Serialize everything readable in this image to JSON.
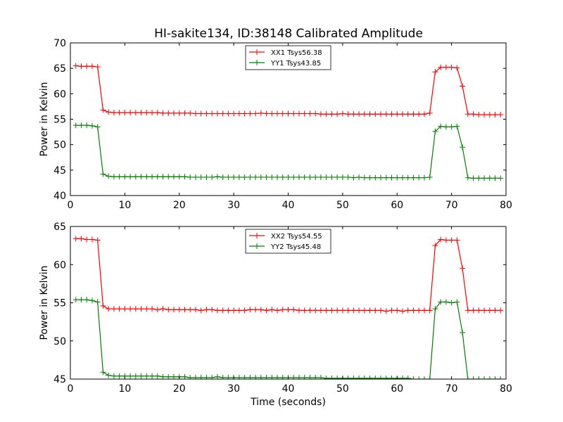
{
  "figure": {
    "title": "HI-sakite134, ID:38148 Calibrated Amplitude"
  },
  "chart_data": [
    {
      "type": "line",
      "title": "HI-sakite134, ID:38148 Calibrated Amplitude",
      "xlabel": "",
      "ylabel": "Power in Kelvin",
      "xlim": [
        0,
        80
      ],
      "ylim": [
        40,
        70
      ],
      "xticks": [
        "0",
        "10",
        "20",
        "30",
        "40",
        "50",
        "60",
        "70",
        "80"
      ],
      "yticks": [
        "40",
        "45",
        "50",
        "55",
        "60",
        "65",
        "70"
      ],
      "grid": false,
      "legend_position": "top-center",
      "x": [
        1,
        2,
        3,
        4,
        5,
        6,
        7,
        8,
        9,
        10,
        11,
        12,
        13,
        14,
        15,
        16,
        17,
        18,
        19,
        20,
        21,
        22,
        23,
        24,
        25,
        26,
        27,
        28,
        29,
        30,
        31,
        32,
        33,
        34,
        35,
        36,
        37,
        38,
        39,
        40,
        41,
        42,
        43,
        44,
        45,
        46,
        47,
        48,
        49,
        50,
        51,
        52,
        53,
        54,
        55,
        56,
        57,
        58,
        59,
        60,
        61,
        62,
        63,
        64,
        65,
        66,
        67,
        68,
        69,
        70,
        71,
        72,
        73,
        74,
        75,
        76,
        77,
        78,
        79
      ],
      "series": [
        {
          "name": "XX1 Tsys56.38",
          "color": "#ff0000",
          "values": [
            65.5,
            65.4,
            65.4,
            65.4,
            65.3,
            56.8,
            56.4,
            56.3,
            56.3,
            56.3,
            56.3,
            56.3,
            56.3,
            56.3,
            56.3,
            56.3,
            56.2,
            56.2,
            56.2,
            56.2,
            56.2,
            56.2,
            56.1,
            56.1,
            56.1,
            56.1,
            56.1,
            56.1,
            56.1,
            56.1,
            56.1,
            56.1,
            56.1,
            56.1,
            56.2,
            56.1,
            56.1,
            56.1,
            56.1,
            56.1,
            56.1,
            56.1,
            56.1,
            56.1,
            56.1,
            56.0,
            56.0,
            56.0,
            56.0,
            56.1,
            56.0,
            56.0,
            56.0,
            56.0,
            56.0,
            56.0,
            56.0,
            56.0,
            56.0,
            56.0,
            56.0,
            56.0,
            56.0,
            56.0,
            56.0,
            56.2,
            64.3,
            65.2,
            65.2,
            65.2,
            65.1,
            61.5,
            56.0,
            56.0,
            55.9,
            55.9,
            55.9,
            55.9,
            55.9
          ]
        },
        {
          "name": "YY1 Tsys43.85",
          "color": "#008000",
          "values": [
            53.8,
            53.8,
            53.8,
            53.7,
            53.5,
            44.2,
            43.8,
            43.7,
            43.7,
            43.7,
            43.7,
            43.7,
            43.7,
            43.7,
            43.7,
            43.7,
            43.7,
            43.7,
            43.7,
            43.7,
            43.7,
            43.6,
            43.6,
            43.6,
            43.6,
            43.6,
            43.7,
            43.6,
            43.6,
            43.6,
            43.6,
            43.6,
            43.6,
            43.6,
            43.6,
            43.6,
            43.6,
            43.6,
            43.6,
            43.6,
            43.6,
            43.6,
            43.6,
            43.6,
            43.6,
            43.6,
            43.6,
            43.6,
            43.6,
            43.6,
            43.6,
            43.5,
            43.6,
            43.5,
            43.5,
            43.5,
            43.5,
            43.5,
            43.5,
            43.5,
            43.5,
            43.5,
            43.5,
            43.5,
            43.5,
            43.6,
            52.6,
            53.6,
            53.5,
            53.5,
            53.6,
            49.5,
            43.5,
            43.4,
            43.4,
            43.4,
            43.4,
            43.4,
            43.4
          ]
        }
      ]
    },
    {
      "type": "line",
      "title": "",
      "xlabel": "Time (seconds)",
      "ylabel": "Power in Kelvin",
      "xlim": [
        0,
        80
      ],
      "ylim": [
        45,
        65
      ],
      "xticks": [
        "0",
        "10",
        "20",
        "30",
        "40",
        "50",
        "60",
        "70",
        "80"
      ],
      "yticks": [
        "45",
        "50",
        "55",
        "60",
        "65"
      ],
      "grid": false,
      "legend_position": "top-center",
      "x": [
        1,
        2,
        3,
        4,
        5,
        6,
        7,
        8,
        9,
        10,
        11,
        12,
        13,
        14,
        15,
        16,
        17,
        18,
        19,
        20,
        21,
        22,
        23,
        24,
        25,
        26,
        27,
        28,
        29,
        30,
        31,
        32,
        33,
        34,
        35,
        36,
        37,
        38,
        39,
        40,
        41,
        42,
        43,
        44,
        45,
        46,
        47,
        48,
        49,
        50,
        51,
        52,
        53,
        54,
        55,
        56,
        57,
        58,
        59,
        60,
        61,
        62,
        63,
        64,
        65,
        66,
        67,
        68,
        69,
        70,
        71,
        72,
        73,
        74,
        75,
        76,
        77,
        78,
        79
      ],
      "series": [
        {
          "name": "XX2 Tsys54.55",
          "color": "#ff0000",
          "values": [
            63.4,
            63.4,
            63.3,
            63.3,
            63.2,
            54.6,
            54.2,
            54.2,
            54.2,
            54.2,
            54.2,
            54.2,
            54.2,
            54.2,
            54.2,
            54.1,
            54.2,
            54.1,
            54.1,
            54.1,
            54.1,
            54.1,
            54.1,
            54.0,
            54.1,
            54.1,
            54.0,
            54.0,
            54.0,
            54.0,
            54.0,
            54.0,
            54.1,
            54.1,
            54.1,
            54.0,
            54.1,
            54.0,
            54.1,
            54.1,
            54.1,
            54.0,
            54.0,
            54.0,
            54.0,
            54.0,
            54.0,
            54.0,
            54.0,
            54.0,
            54.0,
            54.0,
            54.0,
            54.0,
            54.0,
            54.0,
            54.0,
            53.9,
            54.0,
            54.0,
            53.9,
            54.0,
            54.0,
            54.0,
            54.0,
            54.0,
            62.5,
            63.3,
            63.2,
            63.2,
            63.2,
            59.5,
            54.0,
            54.0,
            54.0,
            54.0,
            54.0,
            54.0,
            54.0
          ]
        },
        {
          "name": "YY2 Tsys45.48",
          "color": "#008000",
          "values": [
            55.4,
            55.4,
            55.4,
            55.3,
            55.1,
            45.9,
            45.5,
            45.4,
            45.4,
            45.4,
            45.4,
            45.4,
            45.4,
            45.4,
            45.4,
            45.4,
            45.3,
            45.3,
            45.3,
            45.3,
            45.3,
            45.2,
            45.2,
            45.2,
            45.2,
            45.2,
            45.3,
            45.2,
            45.2,
            45.2,
            45.2,
            45.2,
            45.2,
            45.2,
            45.2,
            45.2,
            45.2,
            45.2,
            45.2,
            45.2,
            45.2,
            45.2,
            45.2,
            45.2,
            45.2,
            45.2,
            45.1,
            45.1,
            45.1,
            45.1,
            45.1,
            45.1,
            45.1,
            45.1,
            45.1,
            45.1,
            45.1,
            45.1,
            45.1,
            45.1,
            45.1,
            45.1,
            45.0,
            45.0,
            45.0,
            45.0,
            54.2,
            55.1,
            55.1,
            55.0,
            55.1,
            51.1,
            45.0,
            45.0,
            45.0,
            45.0,
            45.0,
            45.0,
            45.0
          ]
        }
      ]
    }
  ]
}
